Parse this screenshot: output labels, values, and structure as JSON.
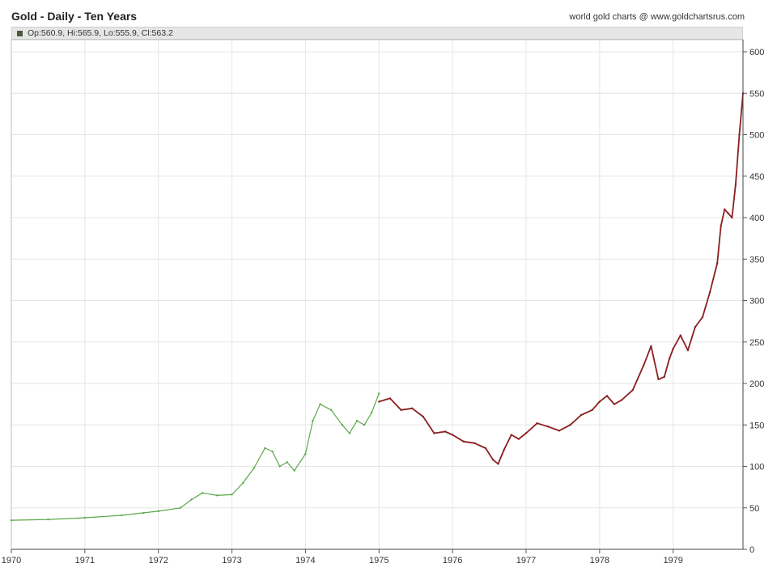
{
  "header": {
    "title": "Gold - Daily - Ten Years",
    "source": "world gold charts @ www.goldchartsrus.com",
    "ohlc": "Op:560.9, Hi:565.9, Lo:555.9, Cl:563.2"
  },
  "colors": {
    "green_series": "#5aa84a",
    "red_series": "#8b1f1f",
    "grid": "#e6e6e6",
    "axis": "#333333"
  },
  "chart_data": {
    "type": "line",
    "title": "Gold - Daily - Ten Years",
    "xlabel": "",
    "ylabel": "",
    "xlim": [
      1970,
      1979.95
    ],
    "ylim": [
      0,
      630
    ],
    "x_ticks": [
      "1970",
      "1971",
      "1972",
      "1973",
      "1974",
      "1975",
      "1976",
      "1977",
      "1978",
      "1979"
    ],
    "y_ticks": [
      "0",
      "50",
      "100",
      "150",
      "200",
      "250",
      "300",
      "350",
      "400",
      "450",
      "500",
      "550",
      "600"
    ],
    "grid": true,
    "y_axis_side": "right",
    "series": [
      {
        "color": "green",
        "x": [
          1970.0,
          1970.5,
          1971.0,
          1971.5,
          1971.8,
          1972.0,
          1972.3,
          1972.45,
          1972.6,
          1972.8,
          1973.0,
          1973.15,
          1973.3,
          1973.45,
          1973.55,
          1973.65,
          1973.75,
          1973.85,
          1974.0,
          1974.1,
          1974.2,
          1974.35,
          1974.5,
          1974.6,
          1974.7,
          1974.8,
          1974.9,
          1975.0
        ],
        "y": [
          35,
          36,
          38,
          41,
          44,
          46,
          50,
          60,
          68,
          65,
          66,
          80,
          98,
          122,
          118,
          100,
          105,
          95,
          115,
          155,
          175,
          168,
          150,
          140,
          155,
          150,
          165,
          188
        ]
      },
      {
        "color": "red",
        "x": [
          1975.0,
          1975.15,
          1975.3,
          1975.45,
          1975.6,
          1975.75,
          1975.9,
          1976.0,
          1976.15,
          1976.3,
          1976.45,
          1976.55,
          1976.62,
          1976.7,
          1976.8,
          1976.9,
          1977.0,
          1977.15,
          1977.3,
          1977.45,
          1977.6,
          1977.75,
          1977.9,
          1978.0,
          1978.1,
          1978.2,
          1978.3,
          1978.45,
          1978.6,
          1978.7,
          1978.8,
          1978.88,
          1978.95,
          1979.0,
          1979.1,
          1979.2,
          1979.3,
          1979.4,
          1979.5,
          1979.6,
          1979.65,
          1979.7,
          1979.75,
          1979.8,
          1979.85,
          1979.9,
          1979.95
        ],
        "y": [
          178,
          182,
          168,
          170,
          160,
          140,
          142,
          138,
          130,
          128,
          122,
          108,
          103,
          120,
          138,
          133,
          140,
          152,
          148,
          143,
          150,
          162,
          168,
          178,
          185,
          175,
          180,
          192,
          222,
          245,
          205,
          208,
          230,
          242,
          258,
          240,
          268,
          280,
          310,
          345,
          390,
          410,
          405,
          400,
          440,
          500,
          550
        ]
      }
    ]
  }
}
